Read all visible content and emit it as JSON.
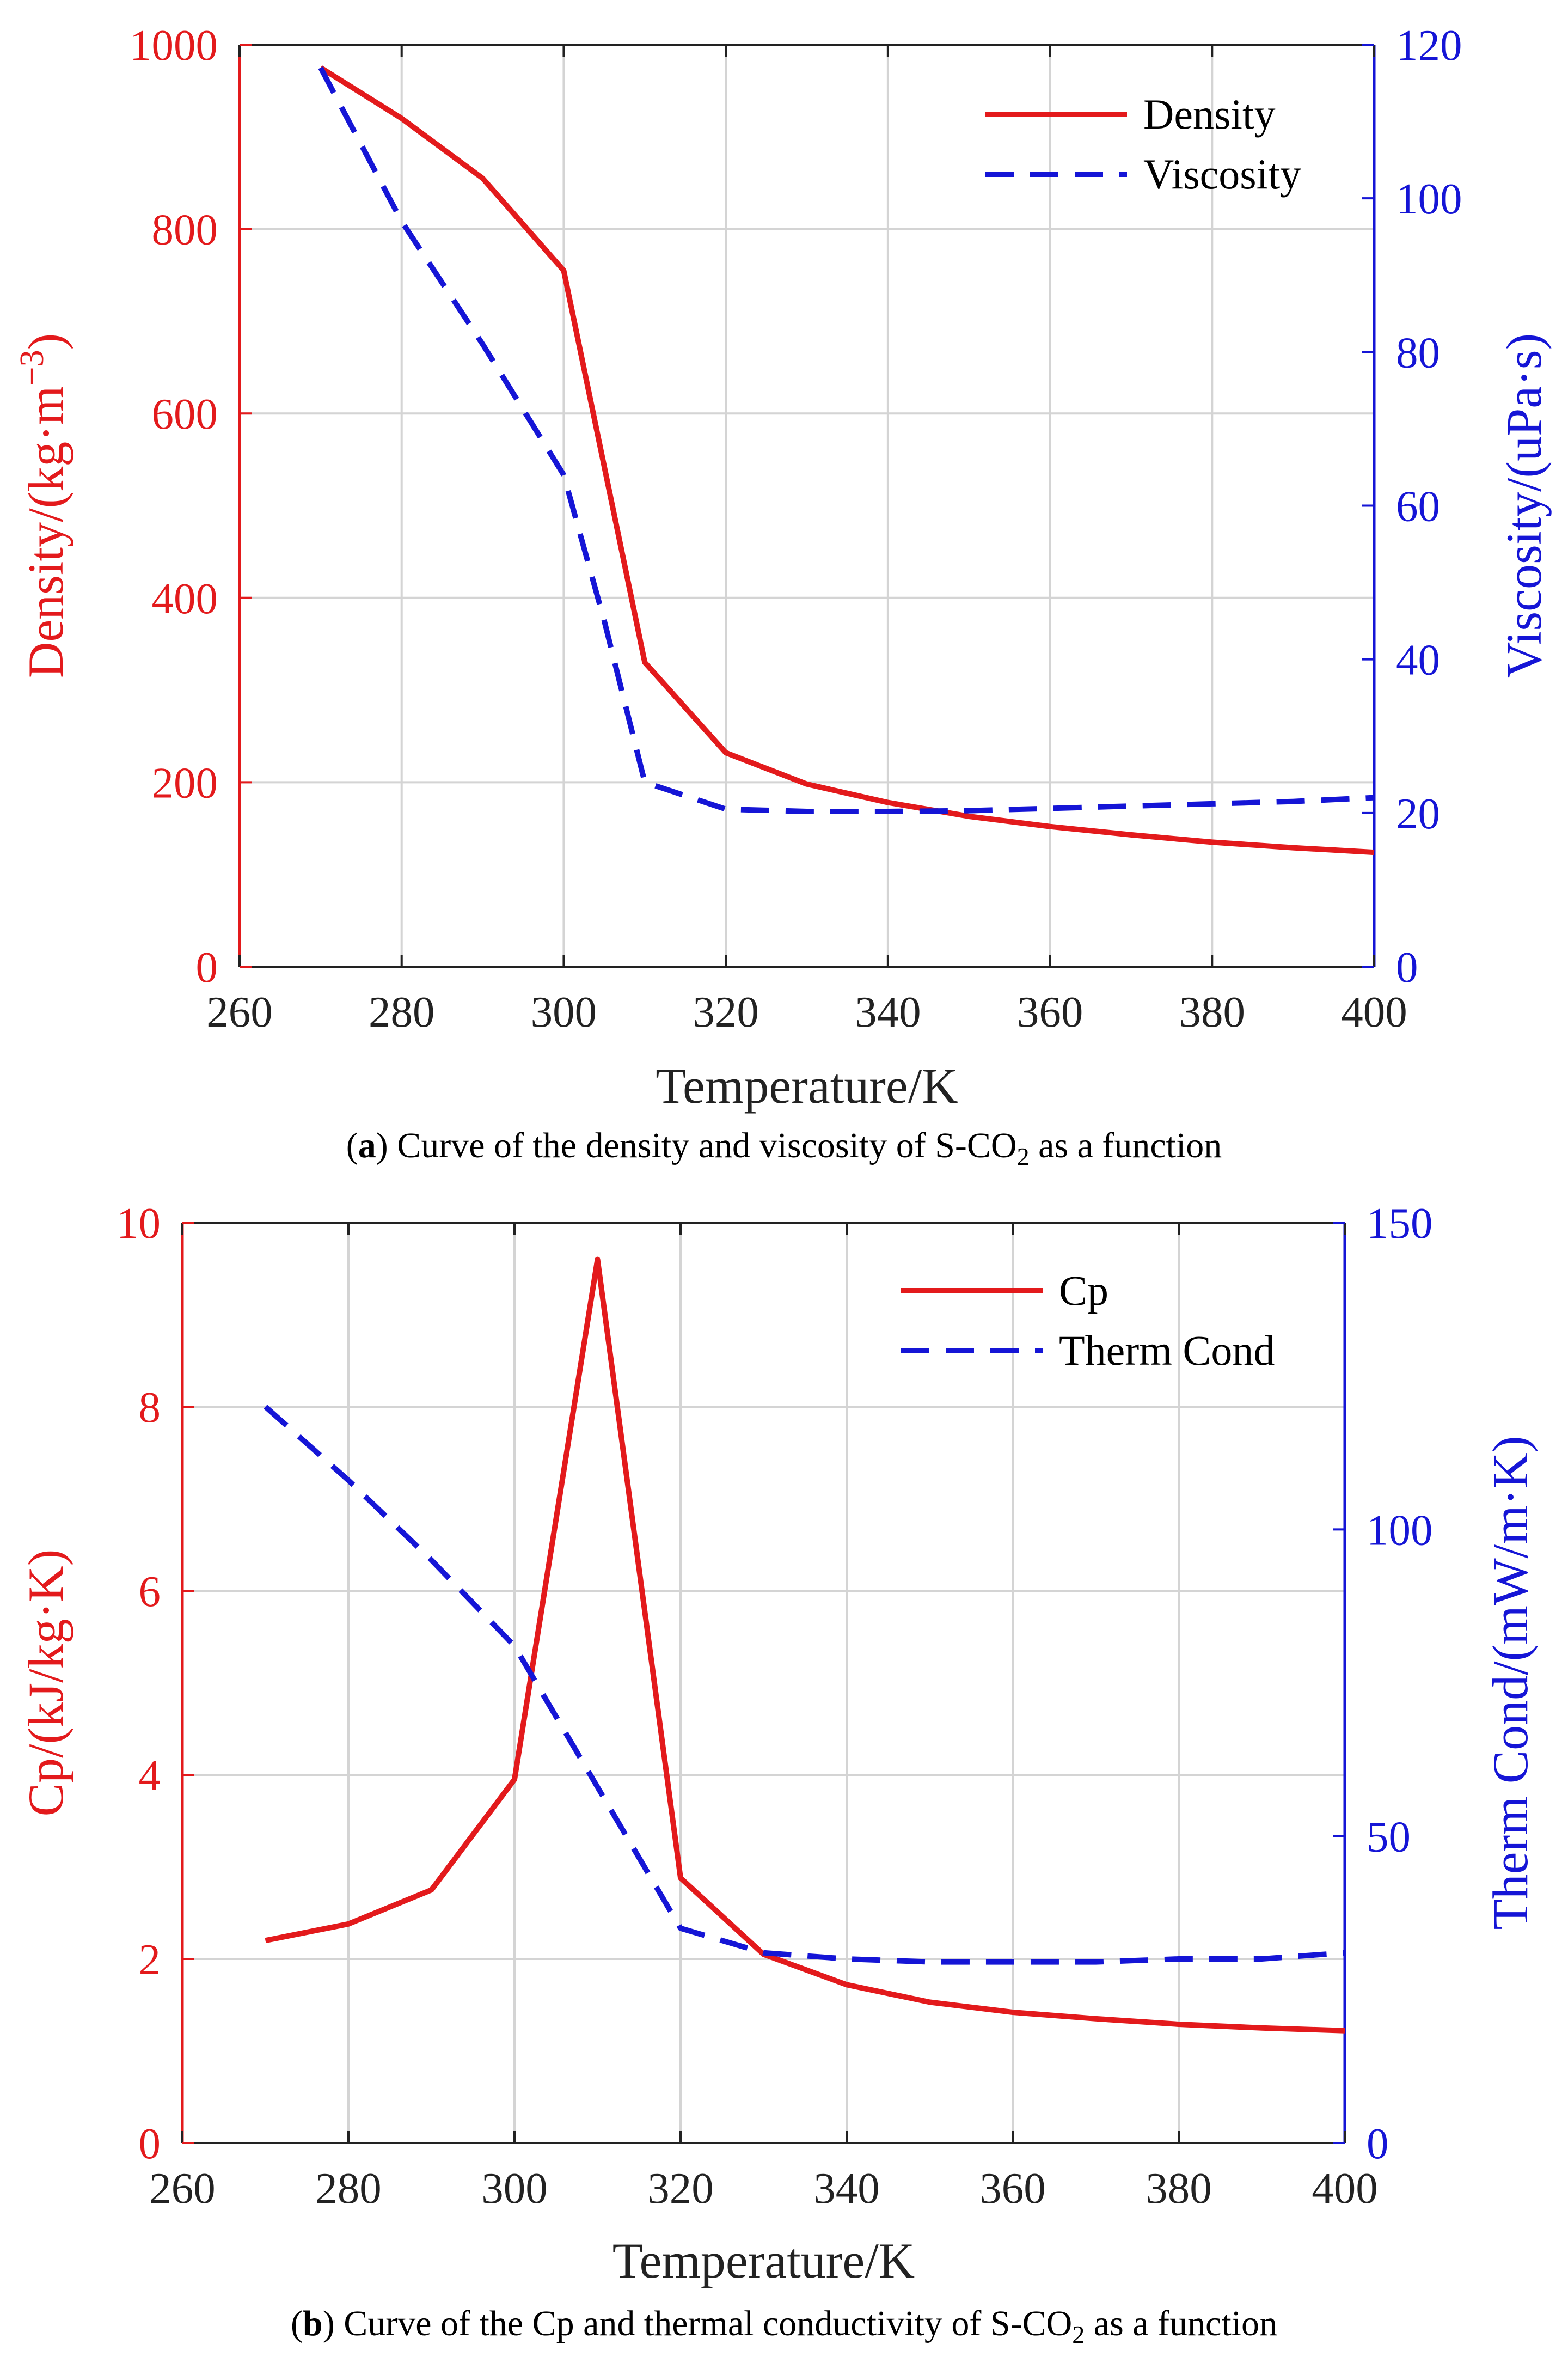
{
  "colors": {
    "left_axis": "#e31a1c",
    "right_axis": "#1515d6",
    "grid": "#d4d4d4",
    "series_red": "#e31a1c",
    "series_blue": "#1515d6"
  },
  "chart_data": [
    {
      "id": "a",
      "type": "line",
      "xlabel": "Temperature/K",
      "ylabel_left": "Density/(kg·m",
      "ylabel_left_sup": "−3",
      "ylabel_left_close": ")",
      "ylabel_right": "Viscosity/(uPa·s)",
      "xlim": [
        260,
        400
      ],
      "ylim_left": [
        0,
        1000
      ],
      "ylim_right": [
        0,
        120
      ],
      "xticks": [
        260,
        280,
        300,
        320,
        340,
        360,
        380,
        400
      ],
      "yticks_left": [
        0,
        200,
        400,
        600,
        800,
        1000
      ],
      "yticks_right": [
        0,
        20,
        40,
        60,
        80,
        100,
        120
      ],
      "grid": true,
      "legend_position": "top-right",
      "series": [
        {
          "name": "Density",
          "axis": "left",
          "style": "solid",
          "color": "#e31a1c",
          "x": [
            270,
            280,
            290,
            300,
            310,
            320,
            330,
            340,
            350,
            360,
            370,
            380,
            390,
            400
          ],
          "y": [
            975,
            920,
            855,
            755,
            330,
            232,
            198,
            178,
            163,
            152,
            143,
            135,
            129,
            124
          ]
        },
        {
          "name": "Viscosity",
          "axis": "right",
          "style": "dashed",
          "color": "#1515d6",
          "x": [
            270,
            280,
            290,
            300,
            305,
            310,
            320,
            330,
            340,
            350,
            360,
            370,
            380,
            390,
            400
          ],
          "y": [
            117,
            97,
            81,
            64,
            45,
            24,
            20.5,
            20.2,
            20.2,
            20.3,
            20.6,
            20.9,
            21.2,
            21.5,
            22
          ]
        }
      ],
      "caption_prefix_open": "(",
      "caption_letter": "a",
      "caption_prefix_close": ")",
      "caption_text": " Curve of the density and viscosity of S-CO",
      "caption_sub": "2",
      "caption_suffix": " as a function"
    },
    {
      "id": "b",
      "type": "line",
      "xlabel": "Temperature/K",
      "ylabel_left": "Cp/(kJ/kg·K)",
      "ylabel_right": "Therm Cond/(mW/m·K)",
      "xlim": [
        260,
        400
      ],
      "ylim_left": [
        0,
        10
      ],
      "ylim_right": [
        0,
        150
      ],
      "xticks": [
        260,
        280,
        300,
        320,
        340,
        360,
        380,
        400
      ],
      "yticks_left": [
        0,
        2,
        4,
        6,
        8,
        10
      ],
      "yticks_right": [
        0,
        50,
        100,
        150
      ],
      "grid": true,
      "legend_position": "top-right",
      "series": [
        {
          "name": "Cp",
          "axis": "left",
          "style": "solid",
          "color": "#e31a1c",
          "x": [
            270,
            280,
            290,
            300,
            310,
            320,
            330,
            340,
            350,
            360,
            370,
            380,
            390,
            400
          ],
          "y": [
            2.2,
            2.38,
            2.75,
            3.95,
            9.6,
            2.88,
            2.05,
            1.72,
            1.53,
            1.42,
            1.35,
            1.29,
            1.25,
            1.22
          ]
        },
        {
          "name": "Therm Cond",
          "axis": "right",
          "style": "dashed",
          "color": "#1515d6",
          "x": [
            270,
            280,
            290,
            300,
            310,
            320,
            330,
            340,
            350,
            360,
            370,
            380,
            390,
            400
          ],
          "y": [
            120,
            108,
            95,
            81,
            58,
            35,
            31,
            30,
            29.5,
            29.5,
            29.5,
            30,
            30,
            31
          ]
        }
      ],
      "caption_prefix_open": "(",
      "caption_letter": "b",
      "caption_prefix_close": ")",
      "caption_text": " Curve of the Cp and thermal conductivity of S-CO",
      "caption_sub": "2",
      "caption_suffix": " as a function"
    }
  ]
}
